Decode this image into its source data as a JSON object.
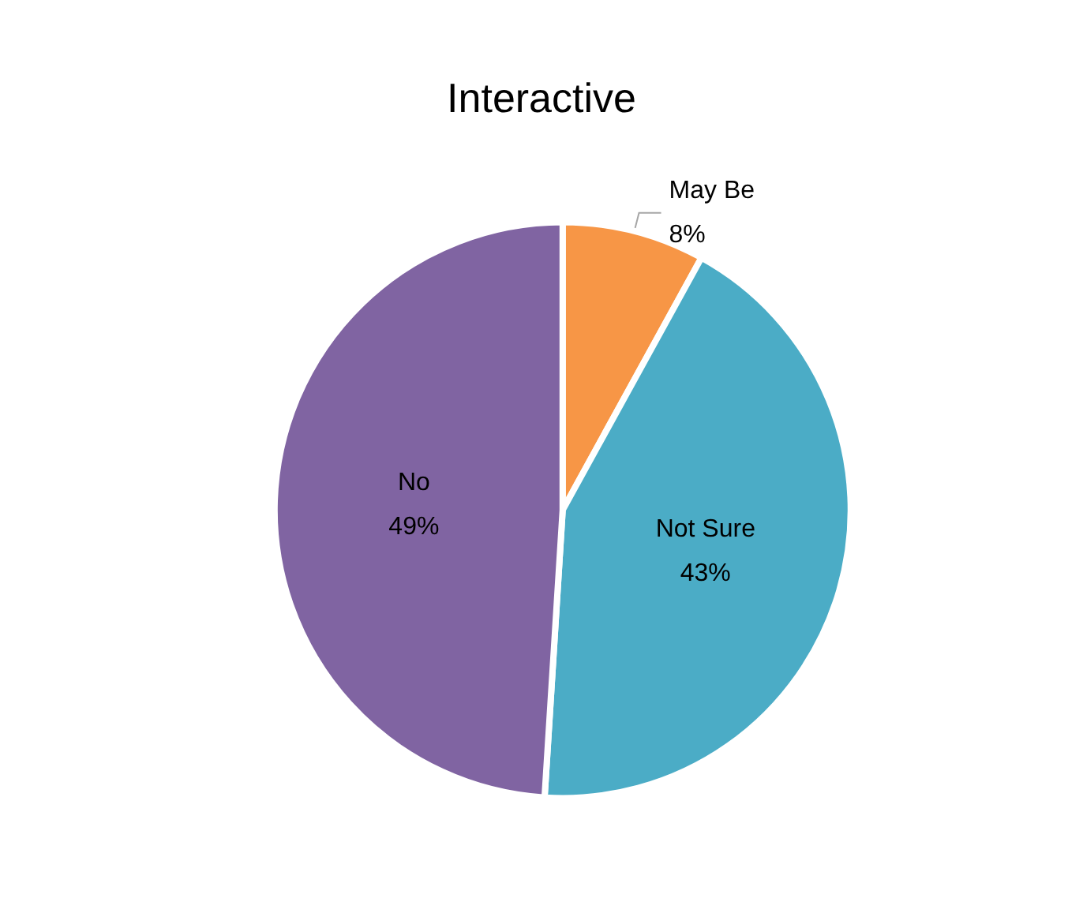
{
  "chart_data": {
    "type": "pie",
    "title": "Interactive",
    "categories": [
      "May Be",
      "Not Sure",
      "No"
    ],
    "values": [
      8,
      43,
      49
    ],
    "colors": [
      "#f79646",
      "#4bacc6",
      "#8064a2"
    ],
    "value_labels": [
      "8%",
      "43%",
      "49%"
    ],
    "legend": false
  }
}
